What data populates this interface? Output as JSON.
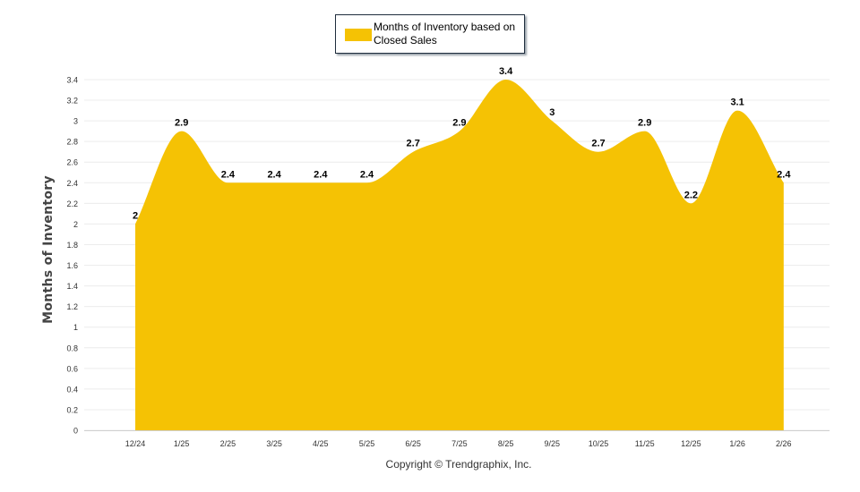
{
  "legend": {
    "label": "Months of Inventory based on Closed Sales"
  },
  "footer": {
    "copyright": "Copyright © Trendgraphix, Inc."
  },
  "chart_data": {
    "type": "area",
    "title": "",
    "xlabel": "",
    "ylabel": "Months of Inventory",
    "ylim": [
      0,
      3.4
    ],
    "yticks": [
      0,
      0.2,
      0.4,
      0.6,
      0.8,
      1,
      1.2,
      1.4,
      1.6,
      1.8,
      2,
      2.2,
      2.4,
      2.6,
      2.8,
      3,
      3.2,
      3.4
    ],
    "grid": true,
    "legend_position": "top-center",
    "categories": [
      "12/24",
      "1/25",
      "2/25",
      "3/25",
      "4/25",
      "5/25",
      "6/25",
      "7/25",
      "8/25",
      "9/25",
      "10/25",
      "11/25",
      "12/25",
      "1/26",
      "2/26"
    ],
    "series": [
      {
        "name": "Months of Inventory based on Closed Sales",
        "color": "#f5c204",
        "values": [
          2,
          2.9,
          2.4,
          2.4,
          2.4,
          2.4,
          2.7,
          2.9,
          3.4,
          3,
          2.7,
          2.9,
          2.2,
          3.1,
          2.4
        ],
        "data_labels": [
          "2",
          "2.9",
          "2.4",
          "2.4",
          "2.4",
          "2.4",
          "2.7",
          "2.9",
          "3.4",
          "3",
          "2.7",
          "2.9",
          "2.2",
          "3.1",
          "2.4"
        ]
      }
    ]
  }
}
